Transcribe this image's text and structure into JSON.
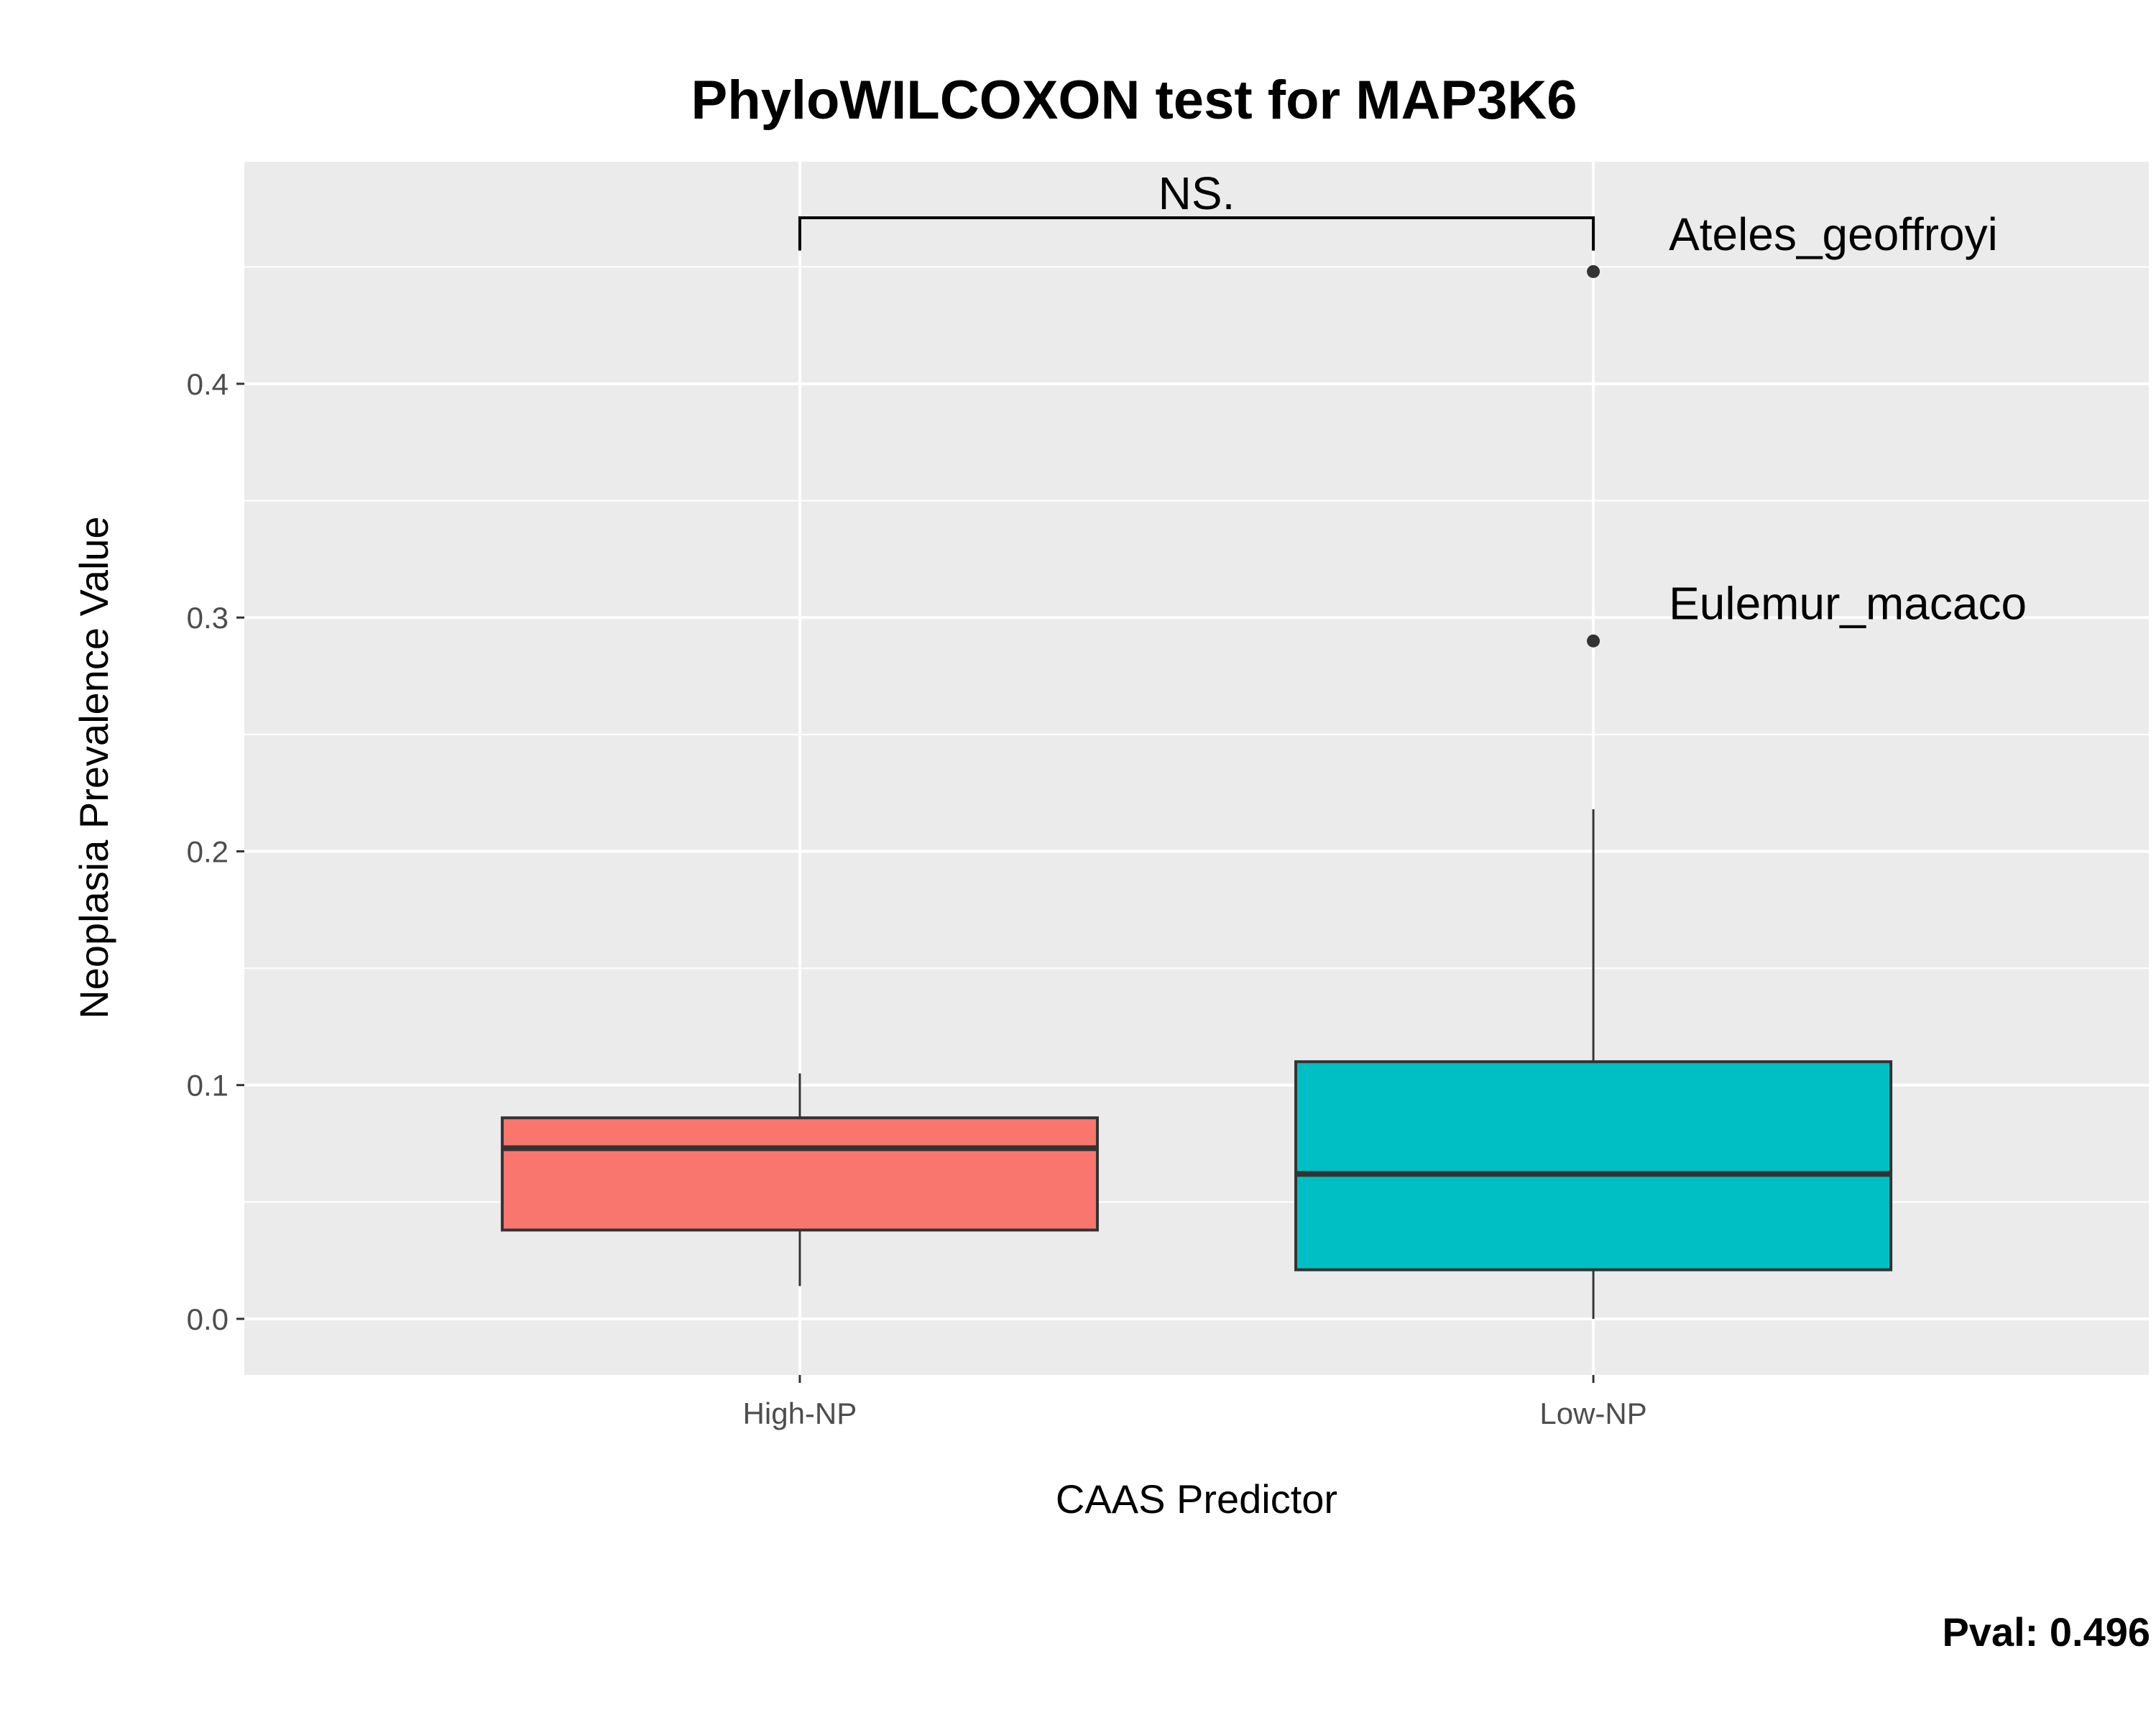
{
  "chart_data": {
    "type": "box",
    "title": "PhyloWILCOXON test for MAP3K6",
    "xlabel": "CAAS Predictor",
    "ylabel": "Neoplasia Prevalence Value",
    "categories": [
      "High-NP",
      "Low-NP"
    ],
    "yticks": [
      "0.0",
      "0.1",
      "0.2",
      "0.3",
      "0.4"
    ],
    "ytick_values": [
      0.0,
      0.1,
      0.2,
      0.3,
      0.4
    ],
    "ylim": [
      -0.024,
      0.495
    ],
    "grid": true,
    "boxes": [
      {
        "category": "High-NP",
        "whisker_low": 0.014,
        "q1": 0.038,
        "median": 0.073,
        "q3": 0.086,
        "whisker_high": 0.105,
        "color": "#F8766D"
      },
      {
        "category": "Low-NP",
        "whisker_low": 0.0,
        "q1": 0.021,
        "median": 0.062,
        "q3": 0.11,
        "whisker_high": 0.218,
        "color": "#00BFC4"
      }
    ],
    "outliers": [
      {
        "category": "Low-NP",
        "value": 0.448,
        "label": "Ateles_geoffroyi"
      },
      {
        "category": "Low-NP",
        "value": 0.29,
        "label": "Eulemur_macaco"
      }
    ],
    "significance": {
      "label": "NS.",
      "from": "High-NP",
      "to": "Low-NP",
      "y": 0.471,
      "tip_low": 0.457
    },
    "pval_text": "Pval:  0.496"
  },
  "colors": {
    "panel_background": "#EBEBEB",
    "grid": "#FFFFFF",
    "box_outline": "#333333",
    "high_np": "#F8766D",
    "low_np": "#00BFC4"
  }
}
